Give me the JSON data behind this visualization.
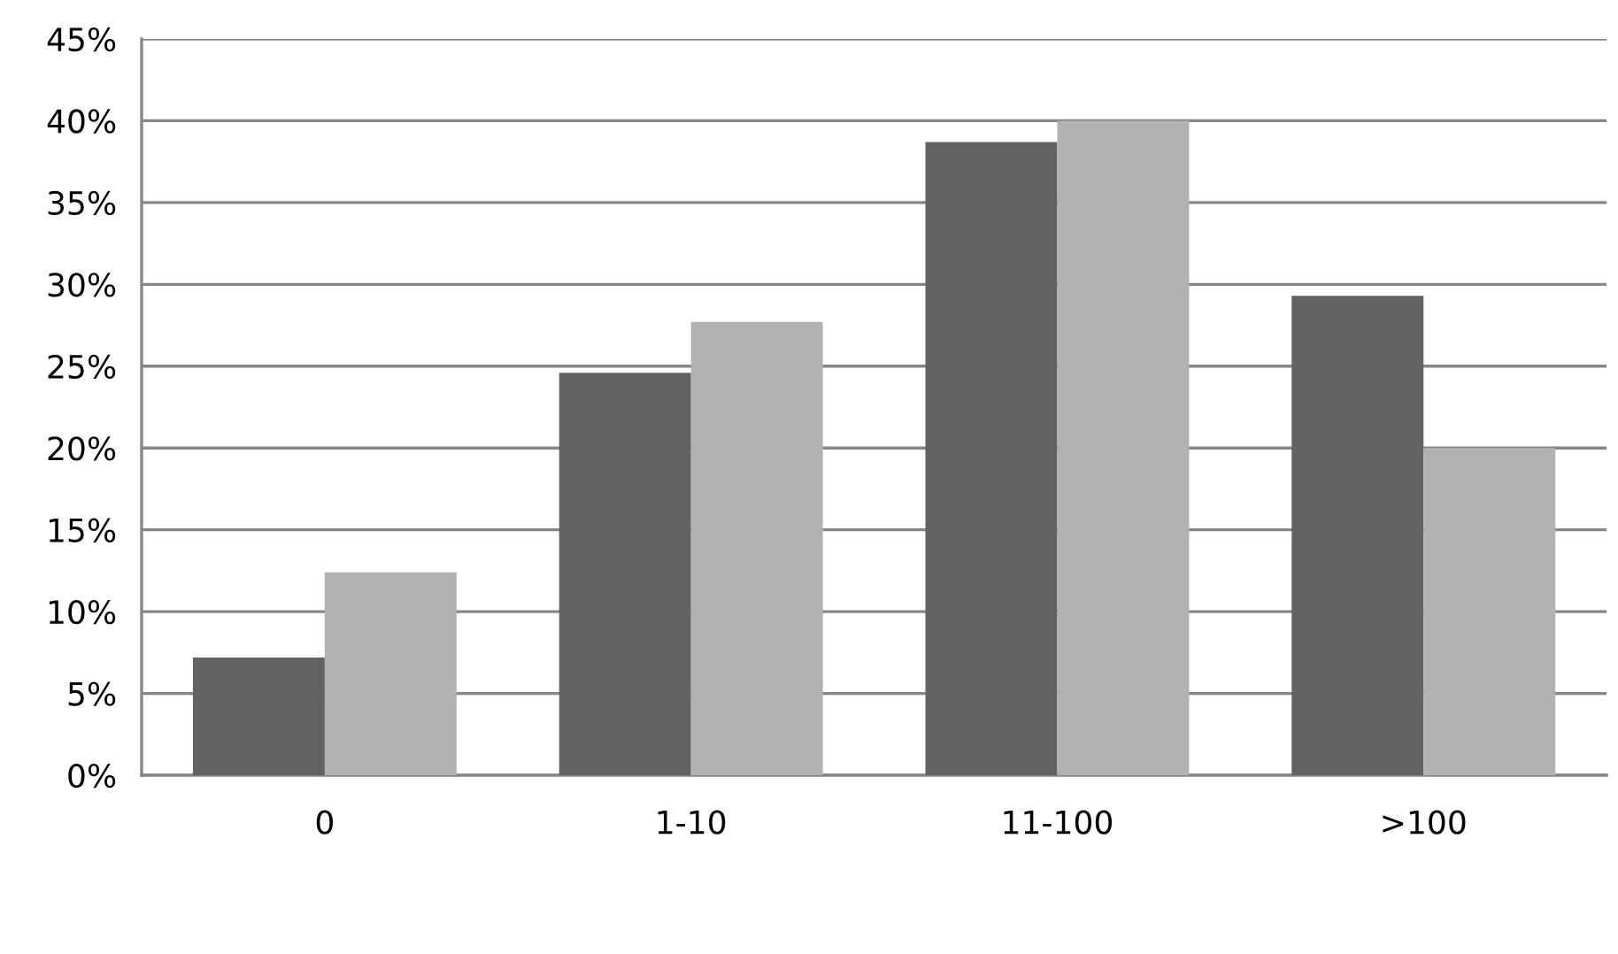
{
  "chart_data": {
    "type": "bar",
    "categories": [
      "0",
      "1-10",
      "11-100",
      ">100"
    ],
    "series": [
      {
        "color": "#626262",
        "values": [
          7.2,
          24.6,
          38.7,
          29.3
        ]
      },
      {
        "color": "#b2b2b2",
        "values": [
          12.4,
          27.7,
          40.0,
          20.0
        ]
      }
    ],
    "ylim": [
      0,
      45
    ],
    "yticks": [
      {
        "value": 0,
        "label": "0%"
      },
      {
        "value": 5,
        "label": "5%"
      },
      {
        "value": 10,
        "label": "10%"
      },
      {
        "value": 15,
        "label": "15%"
      },
      {
        "value": 20,
        "label": "20%"
      },
      {
        "value": 25,
        "label": "25%"
      },
      {
        "value": 30,
        "label": "30%"
      },
      {
        "value": 35,
        "label": "35%"
      },
      {
        "value": 40,
        "label": "40%"
      },
      {
        "value": 45,
        "label": "45%"
      }
    ],
    "grid": "y"
  }
}
